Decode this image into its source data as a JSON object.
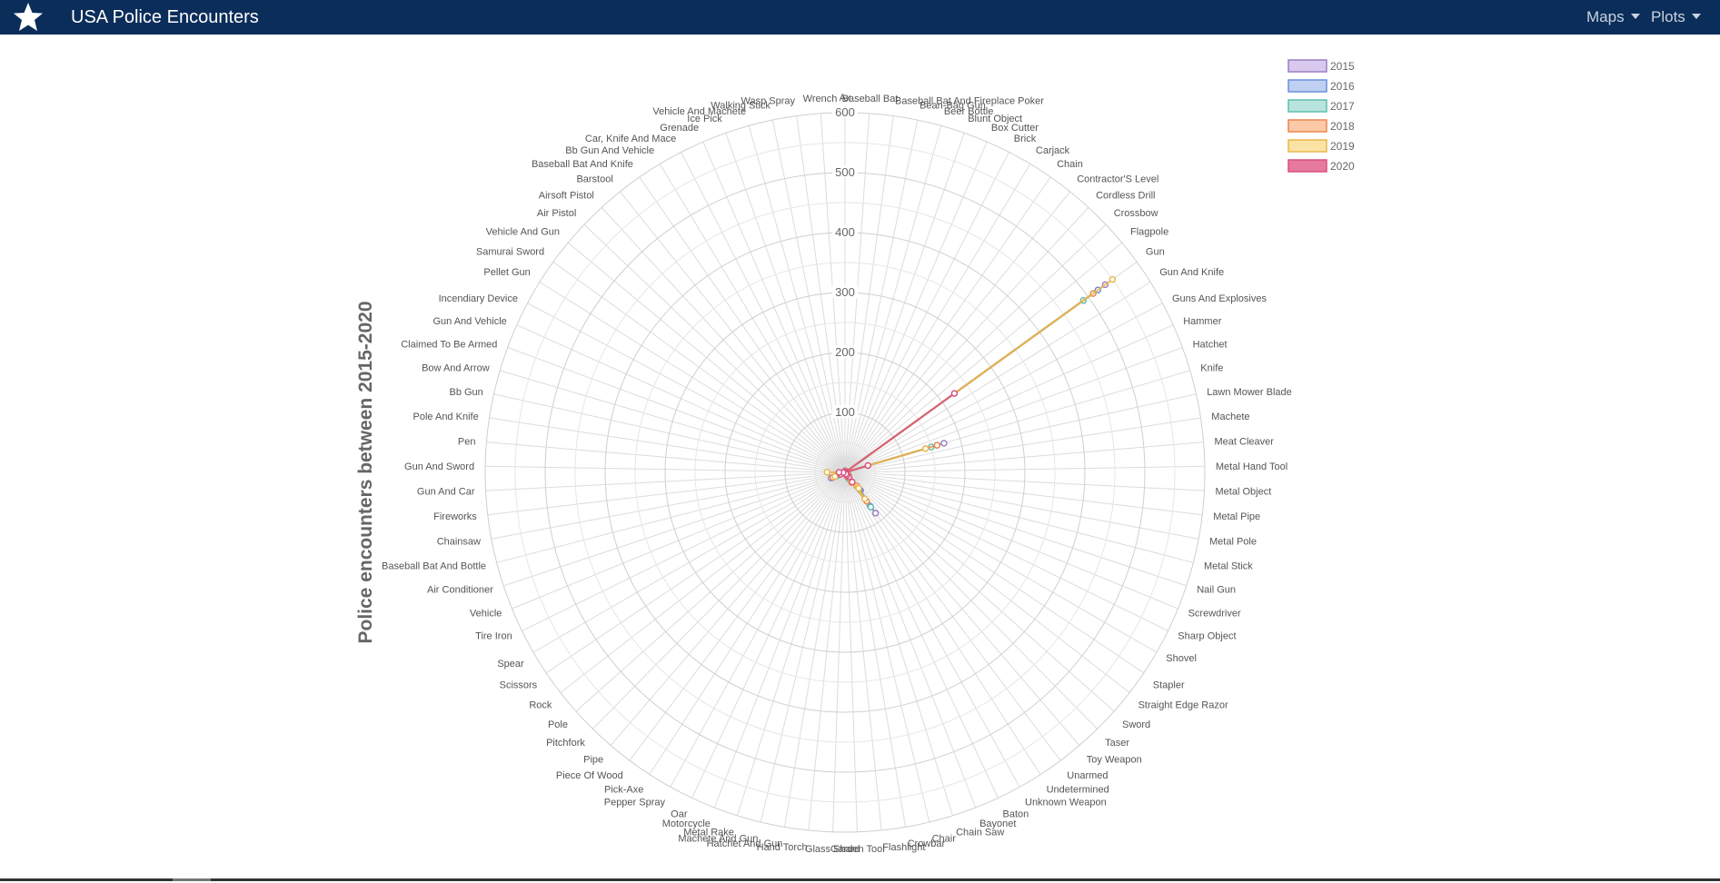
{
  "app": {
    "title": "USA Police Encounters",
    "brand_icon": "star-icon",
    "nav_color": "#0b2d5a"
  },
  "nav": {
    "items": [
      {
        "label": "Maps",
        "icon": "chevron-down-icon"
      },
      {
        "label": "Plots",
        "icon": "chevron-down-icon"
      }
    ]
  },
  "chart_data": {
    "type": "radar",
    "title": "",
    "axis_title": "Police encounters between 2015-2020",
    "r_range": [
      0,
      600
    ],
    "r_ticks": [
      100,
      200,
      300,
      400,
      500,
      600
    ],
    "grid": true,
    "legend_position": "top-right",
    "categories": [
      "Ax",
      "Baseball Bat",
      "Baseball Bat And Fireplace Poker",
      "Bean-Bag Gun",
      "Beer Bottle",
      "Blunt Object",
      "Box Cutter",
      "Brick",
      "Carjack",
      "Chain",
      "Contractor'S Level",
      "Cordless Drill",
      "Crossbow",
      "Flagpole",
      "Gun",
      "Gun And Knife",
      "Guns And Explosives",
      "Hammer",
      "Hatchet",
      "Knife",
      "Lawn Mower Blade",
      "Machete",
      "Meat Cleaver",
      "Metal Hand Tool",
      "Metal Object",
      "Metal Pipe",
      "Metal Pole",
      "Metal Stick",
      "Nail Gun",
      "Screwdriver",
      "Sharp Object",
      "Shovel",
      "Stapler",
      "Straight Edge Razor",
      "Sword",
      "Taser",
      "Toy Weapon",
      "Unarmed",
      "Undetermined",
      "Unknown Weapon",
      "Baton",
      "Bayonet",
      "Chain Saw",
      "Chair",
      "Crowbar",
      "Flashlight",
      "Garden Tool",
      "Glass Shard",
      "Hand Torch",
      "Hatchet And Gun",
      "Machete And Gun",
      "Metal Rake",
      "Motorcycle",
      "Oar",
      "Pepper Spray",
      "Pick-Axe",
      "Piece Of Wood",
      "Pipe",
      "Pitchfork",
      "Pole",
      "Rock",
      "Scissors",
      "Spear",
      "Tire Iron",
      "Vehicle",
      "Air Conditioner",
      "Baseball Bat And Bottle",
      "Chainsaw",
      "Fireworks",
      "Gun And Car",
      "Gun And Sword",
      "Pen",
      "Pole And Knife",
      "Bb Gun",
      "Bow And Arrow",
      "Claimed To Be Armed",
      "Gun And Vehicle",
      "Incendiary Device",
      "Pellet Gun",
      "Samurai Sword",
      "Vehicle And Gun",
      "Air Pistol",
      "Airsoft Pistol",
      "Barstool",
      "Baseball Bat And Knife",
      "Bb Gun And Vehicle",
      "Car, Knife And Mace",
      "Grenade",
      "Ice Pick",
      "Vehicle And Machete",
      "Walking Stick",
      "Wasp Spray",
      "Wrench"
    ],
    "series": [
      {
        "name": "2015",
        "color": "#9b7fc4",
        "fill": "#d9c9ee",
        "values": [
          2,
          3,
          0,
          0,
          0,
          1,
          2,
          0,
          0,
          1,
          0,
          0,
          1,
          0,
          535,
          1,
          0,
          3,
          0,
          172,
          0,
          5,
          0,
          0,
          2,
          1,
          0,
          0,
          0,
          1,
          4,
          1,
          0,
          0,
          1,
          8,
          40,
          85,
          14,
          10,
          0,
          0,
          0,
          1,
          2,
          1,
          0,
          0,
          0,
          0,
          0,
          0,
          0,
          0,
          0,
          0,
          1,
          2,
          0,
          0,
          1,
          2,
          1,
          0,
          25,
          0,
          0,
          0,
          1,
          0,
          0,
          0,
          0,
          0,
          1,
          0,
          0,
          0,
          0,
          0,
          0,
          0,
          0,
          0,
          0,
          0,
          0,
          0,
          0,
          0,
          0,
          0,
          0
        ]
      },
      {
        "name": "2016",
        "color": "#6c8fd8",
        "fill": "#bfd0f3",
        "values": [
          1,
          2,
          0,
          0,
          0,
          1,
          2,
          0,
          0,
          0,
          0,
          0,
          0,
          0,
          520,
          1,
          0,
          2,
          1,
          160,
          0,
          4,
          0,
          0,
          1,
          1,
          0,
          0,
          0,
          1,
          3,
          2,
          0,
          0,
          1,
          7,
          38,
          70,
          12,
          8,
          0,
          0,
          0,
          0,
          1,
          0,
          0,
          0,
          0,
          0,
          0,
          0,
          1,
          0,
          0,
          0,
          0,
          1,
          0,
          0,
          1,
          0,
          0,
          0,
          12,
          0,
          0,
          0,
          0,
          0,
          0,
          0,
          0,
          0,
          0,
          0,
          0,
          0,
          0,
          0,
          0,
          0,
          0,
          0,
          0,
          0,
          0,
          0,
          0,
          0,
          0,
          0,
          0
        ]
      },
      {
        "name": "2017",
        "color": "#5fbfae",
        "fill": "#b9e4dd",
        "values": [
          1,
          2,
          0,
          0,
          0,
          1,
          1,
          0,
          0,
          0,
          0,
          0,
          0,
          0,
          490,
          1,
          0,
          2,
          1,
          150,
          0,
          3,
          0,
          0,
          1,
          1,
          0,
          0,
          0,
          1,
          3,
          1,
          0,
          0,
          1,
          8,
          35,
          72,
          12,
          8,
          0,
          0,
          0,
          0,
          1,
          1,
          0,
          0,
          0,
          0,
          0,
          0,
          0,
          0,
          0,
          0,
          0,
          1,
          0,
          0,
          1,
          0,
          0,
          0,
          15,
          0,
          0,
          0,
          0,
          0,
          0,
          0,
          0,
          0,
          0,
          0,
          0,
          0,
          0,
          0,
          0,
          0,
          0,
          0,
          0,
          0,
          0,
          0,
          0,
          0,
          0,
          0,
          0
        ]
      },
      {
        "name": "2018",
        "color": "#e9874d",
        "fill": "#fcc9a8",
        "values": [
          1,
          2,
          0,
          0,
          0,
          1,
          1,
          0,
          0,
          0,
          0,
          0,
          0,
          0,
          510,
          1,
          0,
          2,
          1,
          160,
          0,
          4,
          0,
          0,
          1,
          1,
          0,
          0,
          0,
          1,
          4,
          2,
          0,
          0,
          1,
          6,
          30,
          60,
          20,
          8,
          0,
          0,
          0,
          0,
          1,
          0,
          0,
          0,
          0,
          0,
          0,
          0,
          0,
          0,
          0,
          0,
          0,
          1,
          0,
          0,
          1,
          0,
          0,
          0,
          22,
          0,
          0,
          0,
          0,
          10,
          0,
          0,
          0,
          0,
          0,
          0,
          0,
          0,
          0,
          0,
          0,
          0,
          0,
          0,
          0,
          0,
          0,
          0,
          0,
          0,
          0,
          0,
          0
        ]
      },
      {
        "name": "2019",
        "color": "#e6b84a",
        "fill": "#fbe3a6",
        "values": [
          1,
          2,
          0,
          0,
          0,
          1,
          1,
          0,
          0,
          0,
          0,
          0,
          0,
          0,
          550,
          1,
          0,
          2,
          1,
          140,
          0,
          4,
          0,
          0,
          1,
          1,
          0,
          0,
          0,
          1,
          3,
          1,
          0,
          0,
          1,
          5,
          35,
          55,
          18,
          6,
          0,
          0,
          0,
          0,
          1,
          0,
          0,
          0,
          0,
          0,
          0,
          0,
          0,
          0,
          0,
          0,
          0,
          1,
          0,
          0,
          1,
          0,
          0,
          0,
          18,
          0,
          0,
          0,
          0,
          10,
          30,
          0,
          0,
          0,
          0,
          0,
          0,
          0,
          0,
          0,
          0,
          0,
          0,
          0,
          0,
          0,
          0,
          0,
          0,
          0,
          0,
          0,
          0
        ]
      },
      {
        "name": "2020",
        "color": "#d9507e",
        "fill": "#e57a9e",
        "values": [
          1,
          1,
          0,
          0,
          0,
          0,
          1,
          0,
          0,
          0,
          0,
          0,
          0,
          0,
          225,
          0,
          0,
          1,
          0,
          40,
          0,
          2,
          0,
          0,
          0,
          0,
          0,
          0,
          0,
          0,
          1,
          0,
          0,
          0,
          0,
          2,
          10,
          20,
          6,
          3,
          0,
          0,
          0,
          0,
          0,
          0,
          0,
          0,
          0,
          0,
          0,
          0,
          0,
          0,
          0,
          0,
          0,
          0,
          0,
          0,
          0,
          0,
          0,
          0,
          8,
          0,
          0,
          0,
          0,
          3,
          10,
          0,
          0,
          0,
          0,
          0,
          0,
          0,
          0,
          0,
          0,
          0,
          0,
          0,
          0,
          0,
          0,
          0,
          0,
          0,
          0,
          0,
          0
        ]
      }
    ]
  }
}
